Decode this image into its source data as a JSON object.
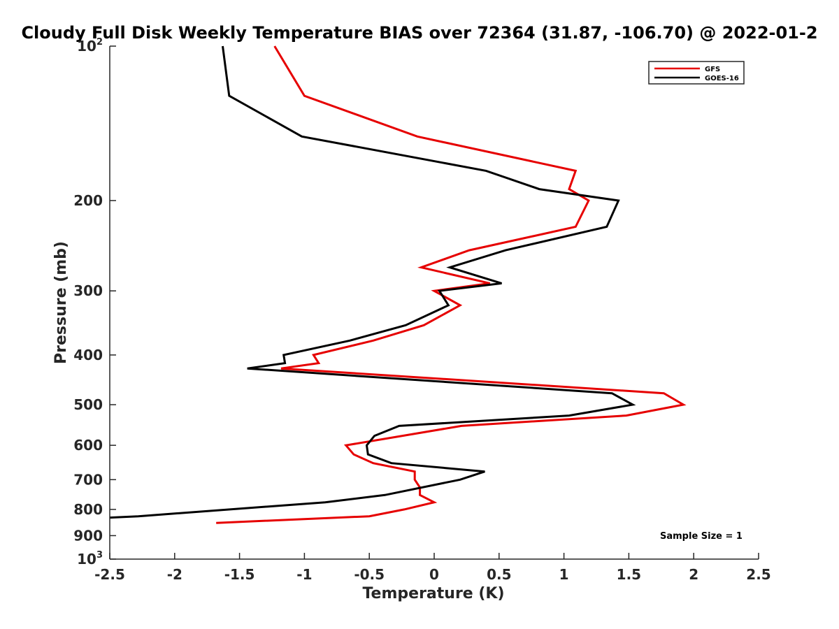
{
  "chart_data": {
    "type": "line",
    "title": "Cloudy Full Disk Weekly Temperature BIAS over 72364 (31.87, -106.70) @ 2022-01-2",
    "xlabel": "Temperature (K)",
    "ylabel": "Pressure (mb)",
    "xlim": [
      -2.5,
      2.5
    ],
    "ylim": [
      100,
      1000
    ],
    "y_scale": "log",
    "y_reversed": true,
    "grid": false,
    "legend_position": "top-right",
    "x_ticks": [
      "-2.5",
      "-2",
      "-1.5",
      "-1",
      "-0.5",
      "0",
      "0.5",
      "1",
      "1.5",
      "2",
      "2.5"
    ],
    "y_ticks": [
      {
        "value": 100,
        "base": "10",
        "exp": "2"
      },
      {
        "value": 200,
        "label": "200"
      },
      {
        "value": 300,
        "label": "300"
      },
      {
        "value": 400,
        "label": "400"
      },
      {
        "value": 500,
        "label": "500"
      },
      {
        "value": 600,
        "label": "600"
      },
      {
        "value": 700,
        "label": "700"
      },
      {
        "value": 800,
        "label": "800"
      },
      {
        "value": 900,
        "label": "900"
      },
      {
        "value": 1000,
        "base": "10",
        "exp": "3"
      }
    ],
    "series": [
      {
        "name": "GFS",
        "color": "#e60000",
        "points": [
          [
            -1.23,
            100
          ],
          [
            -1.0,
            125
          ],
          [
            -0.13,
            150
          ],
          [
            1.09,
            175
          ],
          [
            1.04,
            190
          ],
          [
            1.19,
            200
          ],
          [
            1.09,
            225
          ],
          [
            0.27,
            250
          ],
          [
            -0.1,
            270
          ],
          [
            0.43,
            290
          ],
          [
            0.0,
            300
          ],
          [
            0.2,
            320
          ],
          [
            -0.08,
            350
          ],
          [
            -0.47,
            375
          ],
          [
            -0.93,
            400
          ],
          [
            -0.89,
            415
          ],
          [
            -1.18,
            425
          ],
          [
            1.77,
            475
          ],
          [
            1.92,
            500
          ],
          [
            1.48,
            525
          ],
          [
            0.21,
            550
          ],
          [
            -0.68,
            600
          ],
          [
            -0.62,
            625
          ],
          [
            -0.47,
            650
          ],
          [
            -0.15,
            675
          ],
          [
            -0.15,
            700
          ],
          [
            -0.11,
            725
          ],
          [
            -0.11,
            750
          ],
          [
            0.0,
            775
          ],
          [
            -0.23,
            800
          ],
          [
            -0.5,
            825
          ],
          [
            -1.68,
            850
          ]
        ]
      },
      {
        "name": "GOES-16",
        "color": "#000000",
        "points": [
          [
            -1.63,
            100
          ],
          [
            -1.58,
            125
          ],
          [
            -1.02,
            150
          ],
          [
            0.4,
            175
          ],
          [
            0.81,
            190
          ],
          [
            1.42,
            200
          ],
          [
            1.33,
            225
          ],
          [
            0.55,
            250
          ],
          [
            0.12,
            270
          ],
          [
            0.52,
            290
          ],
          [
            0.04,
            300
          ],
          [
            0.11,
            320
          ],
          [
            -0.22,
            350
          ],
          [
            -0.65,
            375
          ],
          [
            -1.16,
            400
          ],
          [
            -1.15,
            415
          ],
          [
            -1.44,
            425
          ],
          [
            1.37,
            475
          ],
          [
            1.53,
            500
          ],
          [
            1.04,
            525
          ],
          [
            -0.27,
            550
          ],
          [
            -0.46,
            575
          ],
          [
            -0.52,
            600
          ],
          [
            -0.51,
            625
          ],
          [
            -0.33,
            650
          ],
          [
            0.39,
            675
          ],
          [
            0.2,
            700
          ],
          [
            -0.38,
            750
          ],
          [
            -0.84,
            775
          ],
          [
            -2.28,
            825
          ],
          [
            -2.5,
            830
          ]
        ]
      }
    ],
    "annotation": "Sample Size = 1"
  }
}
